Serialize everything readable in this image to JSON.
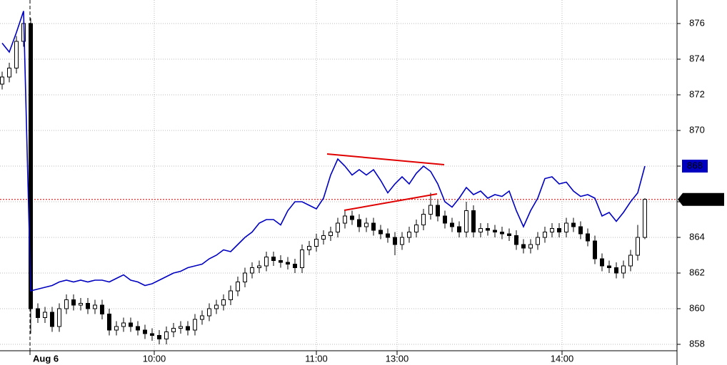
{
  "chart_data": {
    "type": "candlestick",
    "candles": [
      [
        872.6,
        873.3,
        872.3,
        873.0
      ],
      [
        873.0,
        873.8,
        872.7,
        873.5
      ],
      [
        873.5,
        875.3,
        873.2,
        875.0
      ],
      [
        875.0,
        876.3,
        874.7,
        876.0
      ],
      [
        876.0,
        876.3,
        858.6,
        860.0
      ],
      [
        860.0,
        860.3,
        859.2,
        859.5
      ],
      [
        859.5,
        860.1,
        859.2,
        859.8
      ],
      [
        859.8,
        860.1,
        858.7,
        859.0
      ],
      [
        859.0,
        860.3,
        858.7,
        860.0
      ],
      [
        860.0,
        860.8,
        859.7,
        860.5
      ],
      [
        860.5,
        860.8,
        859.9,
        860.2
      ],
      [
        860.2,
        860.6,
        859.9,
        860.3
      ],
      [
        860.3,
        860.6,
        859.7,
        860.0
      ],
      [
        860.0,
        860.5,
        859.7,
        860.2
      ],
      [
        860.2,
        860.5,
        859.4,
        859.7
      ],
      [
        859.7,
        860.0,
        858.5,
        858.8
      ],
      [
        858.8,
        859.3,
        858.5,
        859.0
      ],
      [
        859.0,
        859.5,
        858.7,
        859.2
      ],
      [
        859.2,
        859.5,
        858.7,
        859.0
      ],
      [
        859.0,
        859.3,
        858.5,
        858.8
      ],
      [
        858.8,
        859.1,
        858.3,
        858.6
      ],
      [
        858.6,
        858.9,
        858.2,
        858.5
      ],
      [
        858.5,
        858.8,
        858.0,
        858.3
      ],
      [
        858.3,
        859.0,
        858.0,
        858.7
      ],
      [
        858.7,
        859.2,
        858.4,
        858.9
      ],
      [
        858.9,
        859.3,
        858.6,
        859.0
      ],
      [
        859.0,
        859.3,
        858.5,
        858.8
      ],
      [
        858.8,
        859.7,
        858.5,
        859.4
      ],
      [
        859.4,
        859.9,
        859.1,
        859.6
      ],
      [
        859.6,
        860.3,
        859.3,
        860.0
      ],
      [
        860.0,
        860.5,
        859.7,
        860.2
      ],
      [
        860.2,
        860.8,
        859.9,
        860.5
      ],
      [
        860.5,
        861.3,
        860.2,
        861.0
      ],
      [
        861.0,
        861.8,
        860.7,
        861.5
      ],
      [
        861.5,
        862.3,
        861.2,
        862.0
      ],
      [
        862.0,
        862.6,
        861.7,
        862.3
      ],
      [
        862.3,
        862.7,
        862.0,
        862.4
      ],
      [
        862.4,
        863.2,
        862.1,
        862.9
      ],
      [
        862.9,
        863.2,
        862.4,
        862.7
      ],
      [
        862.7,
        863.0,
        862.3,
        862.6
      ],
      [
        862.6,
        862.9,
        862.2,
        862.5
      ],
      [
        862.5,
        862.8,
        862.0,
        862.3
      ],
      [
        862.3,
        863.6,
        862.0,
        863.3
      ],
      [
        863.3,
        863.8,
        863.0,
        863.5
      ],
      [
        863.5,
        864.2,
        863.2,
        863.9
      ],
      [
        863.9,
        864.4,
        863.6,
        864.1
      ],
      [
        864.1,
        864.6,
        863.8,
        864.3
      ],
      [
        864.3,
        865.1,
        864.0,
        864.8
      ],
      [
        864.8,
        865.5,
        864.5,
        865.2
      ],
      [
        865.2,
        865.5,
        864.7,
        865.0
      ],
      [
        865.0,
        865.3,
        864.3,
        864.6
      ],
      [
        864.6,
        865.1,
        864.3,
        864.8
      ],
      [
        864.8,
        865.1,
        864.1,
        864.4
      ],
      [
        864.4,
        864.7,
        863.9,
        864.2
      ],
      [
        864.2,
        864.5,
        863.7,
        864.0
      ],
      [
        864.0,
        864.3,
        863.0,
        863.6
      ],
      [
        863.6,
        864.3,
        863.3,
        864.0
      ],
      [
        864.0,
        864.6,
        863.7,
        864.3
      ],
      [
        864.3,
        865.0,
        864.0,
        864.7
      ],
      [
        864.7,
        865.6,
        864.4,
        865.3
      ],
      [
        865.3,
        866.5,
        865.0,
        865.8
      ],
      [
        865.8,
        866.1,
        864.9,
        865.2
      ],
      [
        865.2,
        865.5,
        864.5,
        864.8
      ],
      [
        864.8,
        865.1,
        864.3,
        864.6
      ],
      [
        864.6,
        864.9,
        864.0,
        864.3
      ],
      [
        864.3,
        866.0,
        864.0,
        865.5
      ],
      [
        865.5,
        865.8,
        864.0,
        864.3
      ],
      [
        864.3,
        864.8,
        864.0,
        864.5
      ],
      [
        864.5,
        864.8,
        864.1,
        864.4
      ],
      [
        864.4,
        864.7,
        864.0,
        864.3
      ],
      [
        864.3,
        864.6,
        863.9,
        864.2
      ],
      [
        864.2,
        864.5,
        863.8,
        864.1
      ],
      [
        864.1,
        864.4,
        863.3,
        863.6
      ],
      [
        863.6,
        863.9,
        863.1,
        863.4
      ],
      [
        863.4,
        863.9,
        863.1,
        863.6
      ],
      [
        863.6,
        864.3,
        863.3,
        864.0
      ],
      [
        864.0,
        864.6,
        863.7,
        864.3
      ],
      [
        864.3,
        864.8,
        864.0,
        864.5
      ],
      [
        864.5,
        864.8,
        864.0,
        864.3
      ],
      [
        864.3,
        865.1,
        864.0,
        864.8
      ],
      [
        864.8,
        865.1,
        864.3,
        864.6
      ],
      [
        864.6,
        864.9,
        863.9,
        864.2
      ],
      [
        864.2,
        864.5,
        863.5,
        863.8
      ],
      [
        863.8,
        864.1,
        862.5,
        862.8
      ],
      [
        862.8,
        863.1,
        862.1,
        862.4
      ],
      [
        862.4,
        862.7,
        862.0,
        862.3
      ],
      [
        862.3,
        862.6,
        861.7,
        862.0
      ],
      [
        862.0,
        862.7,
        861.7,
        862.4
      ],
      [
        862.4,
        863.3,
        862.1,
        863.0
      ],
      [
        863.0,
        864.7,
        862.7,
        864.0
      ],
      [
        864.0,
        866.2,
        863.9,
        866.13
      ]
    ],
    "up_color": "#ffffff",
    "down_color": "#000000",
    "series": [
      {
        "color": "#0000c0",
        "values": [
          874.9,
          874.4,
          875.5,
          876.7,
          861.0,
          861.1,
          861.2,
          861.3,
          861.5,
          861.6,
          861.5,
          861.6,
          861.5,
          861.6,
          861.6,
          861.5,
          861.7,
          861.9,
          861.6,
          861.5,
          861.3,
          861.4,
          861.6,
          861.8,
          862.0,
          862.1,
          862.3,
          862.4,
          862.5,
          862.8,
          863.0,
          863.3,
          863.2,
          863.6,
          864.0,
          864.3,
          864.8,
          865.0,
          865.0,
          864.7,
          865.5,
          866.0,
          866.0,
          865.8,
          865.6,
          866.2,
          867.5,
          868.4,
          868.0,
          867.5,
          867.8,
          867.5,
          867.8,
          867.2,
          866.5,
          867.0,
          867.4,
          867.0,
          867.6,
          868.0,
          867.7,
          867.0,
          866.0,
          865.7,
          866.2,
          866.8,
          866.4,
          866.6,
          866.2,
          866.4,
          866.3,
          866.6,
          865.5,
          864.6,
          865.5,
          866.2,
          867.3,
          867.4,
          867.0,
          867.1,
          866.6,
          866.3,
          866.4,
          866.2,
          865.2,
          865.4,
          864.9,
          865.4,
          866.0,
          866.5,
          868.0
        ]
      }
    ],
    "trendlines": [
      {
        "color": "#e00000",
        "x": [
          45.5,
          61.9
        ],
        "y": [
          868.68,
          868.08
        ]
      },
      {
        "color": "#e00000",
        "x": [
          47.9,
          60.9
        ],
        "y": [
          865.52,
          866.44
        ]
      }
    ],
    "last_line_color": "#d00000",
    "xlim": [
      -0.3,
      94.5
    ],
    "xticks": [
      {
        "value": 3.9,
        "label": "Aug 6"
      },
      {
        "value": 21.3,
        "label": "10:00"
      },
      {
        "value": 44,
        "label": "11:00"
      },
      {
        "value": 55.3,
        "label": "13:00"
      },
      {
        "value": 78.4,
        "label": "14:00"
      }
    ],
    "ylim": [
      857.64,
      877.32
    ],
    "yticks": [
      858,
      860,
      862,
      864,
      866,
      868,
      870,
      872,
      874,
      876
    ],
    "grid": true
  }
}
